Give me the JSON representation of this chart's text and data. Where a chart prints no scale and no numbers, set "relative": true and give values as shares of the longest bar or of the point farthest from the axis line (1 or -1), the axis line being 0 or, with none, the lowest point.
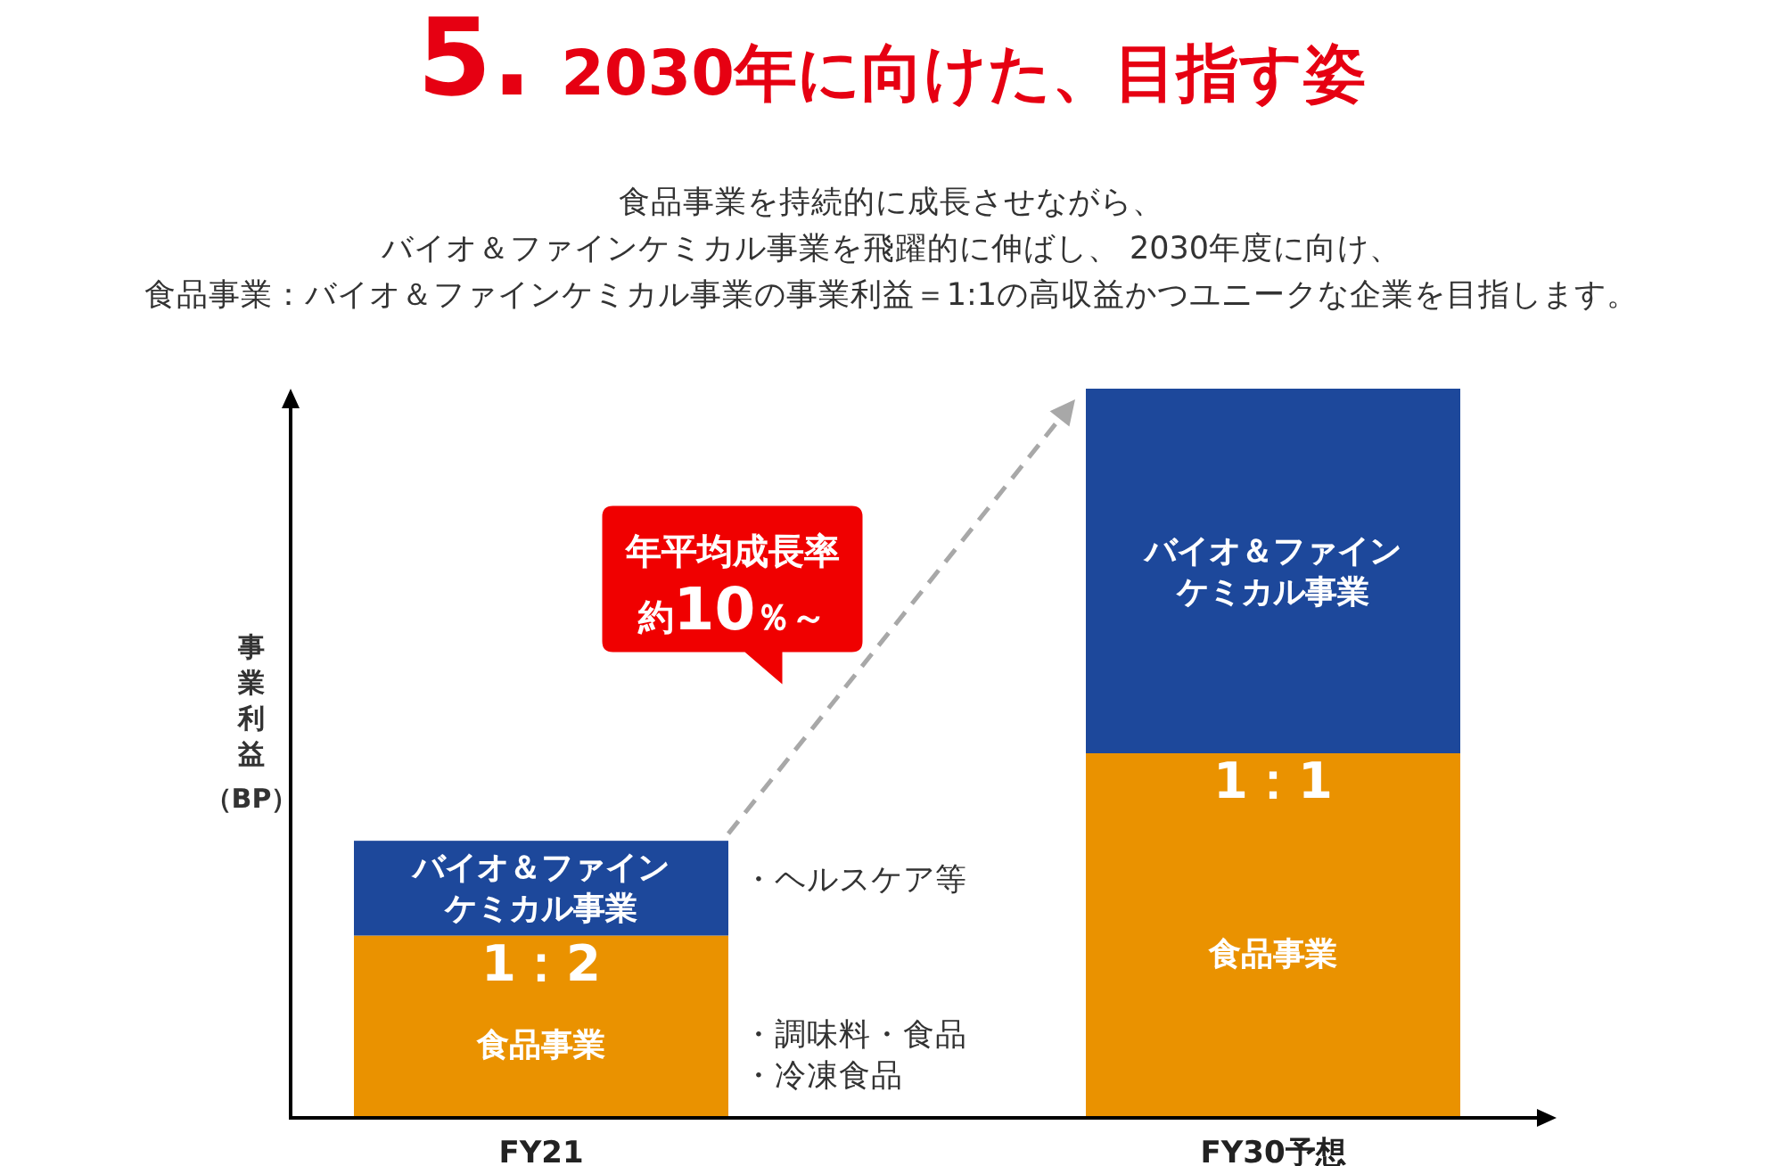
{
  "chart_data": {
    "type": "bar",
    "stacked": true,
    "relative": true,
    "tick_labels": "x",
    "title": "5. 2030年に向けた、目指す姿",
    "subtitle": "食品事業を持続的に成長させながら、バイオ＆ファインケミカル事業を飛躍的に伸ばし、 2030年度に向け、食品事業：バイオ＆ファインケミカル事業の事業利益＝1:1の高収益かつユニークな企業を目指します。",
    "ylabel": "事業利益（BP）",
    "categories": [
      "FY21",
      "FY30予想"
    ],
    "series": [
      {
        "name": "食品事業",
        "color": "#ea9200",
        "values": [
          0.25,
          0.5
        ]
      },
      {
        "name": "バイオ＆ファインケミカル事業",
        "color": "#1d489b",
        "values": [
          0.13,
          0.5
        ]
      }
    ],
    "annotations": [
      "年平均成長率約10％～",
      {
        "text": "1：2",
        "x": "FY21",
        "y": 0.25
      },
      {
        "text": "1：1",
        "x": "FY30予想",
        "y": 0.5
      },
      "・ヘルスケア等",
      "・調味料・食品",
      "・冷凍食品"
    ]
  }
}
